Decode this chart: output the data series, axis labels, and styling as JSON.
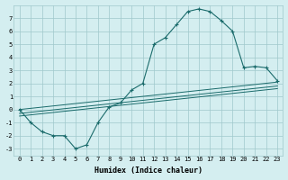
{
  "xlabel": "Humidex (Indice chaleur)",
  "background_color": "#d4eef0",
  "grid_color": "#a0c8cc",
  "line_color": "#1a6b6b",
  "x_ticks": [
    0,
    1,
    2,
    3,
    4,
    5,
    6,
    7,
    8,
    9,
    10,
    11,
    12,
    13,
    14,
    15,
    16,
    17,
    18,
    19,
    20,
    21,
    22,
    23
  ],
  "y_ticks": [
    -3,
    -2,
    -1,
    0,
    1,
    2,
    3,
    4,
    5,
    6,
    7
  ],
  "ylim": [
    -3.5,
    8.0
  ],
  "xlim": [
    -0.5,
    23.5
  ],
  "main_x": [
    0,
    1,
    2,
    3,
    4,
    5,
    6,
    7,
    8,
    9,
    10,
    11,
    12,
    13,
    14,
    15,
    16,
    17,
    18,
    19,
    20,
    21,
    22,
    23
  ],
  "main_y": [
    0.0,
    -1.0,
    -1.7,
    -2.0,
    -2.0,
    -3.0,
    -2.7,
    -1.0,
    0.2,
    0.5,
    1.5,
    2.0,
    5.0,
    5.5,
    6.5,
    7.5,
    7.7,
    7.5,
    6.8,
    6.0,
    3.2,
    3.3,
    3.2,
    2.2
  ],
  "line1_x": [
    0,
    23
  ],
  "line1_y": [
    0.0,
    2.1
  ],
  "line2_x": [
    0,
    23
  ],
  "line2_y": [
    -0.3,
    1.8
  ],
  "line3_x": [
    0,
    23
  ],
  "line3_y": [
    -0.5,
    1.6
  ]
}
